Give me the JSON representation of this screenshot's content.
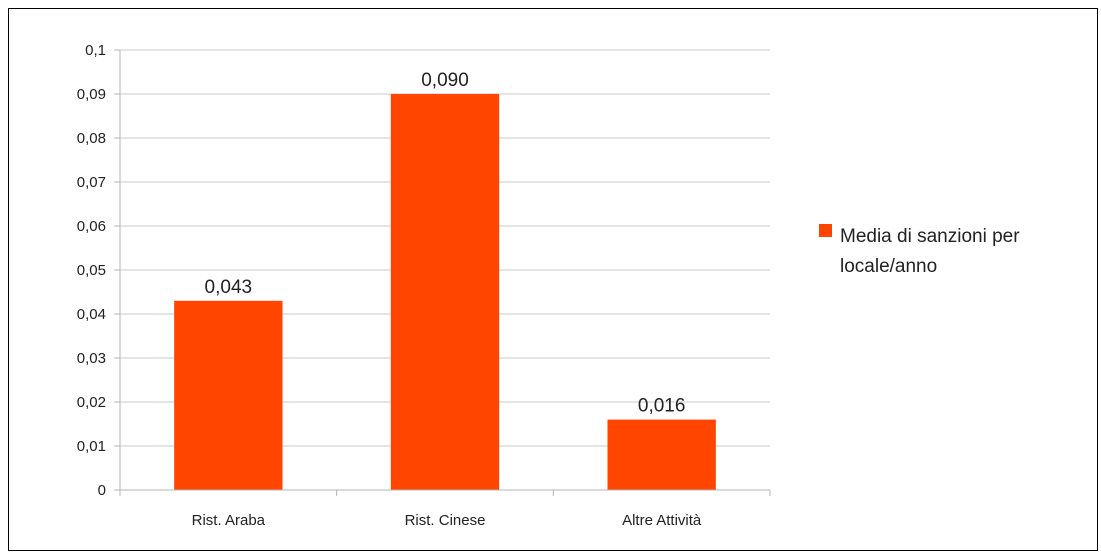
{
  "chart_data": {
    "type": "bar",
    "categories": [
      "Rist. Araba",
      "Rist. Cinese",
      "Altre Attività"
    ],
    "series": [
      {
        "name": "Media di sanzioni per locale/anno",
        "values": [
          0.043,
          0.09,
          0.016
        ],
        "color": "#ff4500"
      }
    ],
    "data_labels": [
      "0,043",
      "0,090",
      "0,016"
    ],
    "legend": {
      "lines": [
        "Media di sanzioni per",
        "locale/anno"
      ],
      "placement": "right"
    },
    "y_ticks": [
      "0",
      "0,01",
      "0,02",
      "0,03",
      "0,04",
      "0,05",
      "0,06",
      "0,07",
      "0,08",
      "0,09",
      "0,1"
    ],
    "ylim": [
      0,
      0.1
    ],
    "grid": true,
    "title": "",
    "xlabel": "",
    "ylabel": ""
  }
}
